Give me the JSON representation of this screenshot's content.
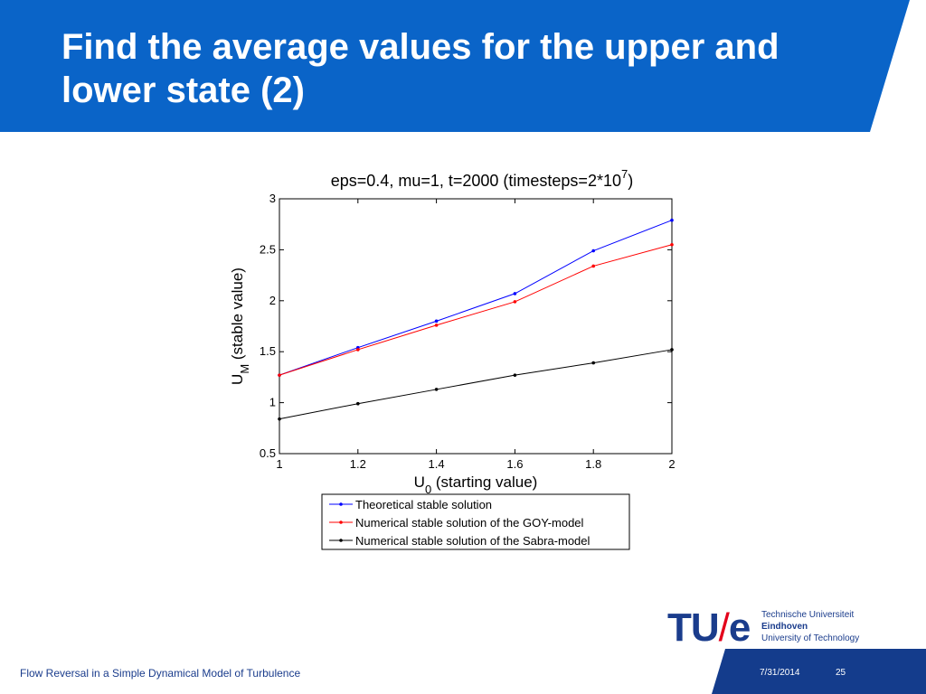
{
  "slide": {
    "title": "Find the average values for the upper and lower state (2)"
  },
  "footer": {
    "text": "Flow Reversal in a Simple Dynamical Model of Turbulence",
    "date": "7/31/2014",
    "page": "25"
  },
  "logo": {
    "mark_left": "TU",
    "mark_slash": "/",
    "mark_right": "e",
    "line1": "Technische Universiteit",
    "line2": "Eindhoven",
    "line3": "University of Technology"
  },
  "colors": {
    "header": "#0a64c8",
    "footer": "#143c8c",
    "theoretical": "#0000ff",
    "goy": "#ff0000",
    "sabra": "#000000"
  },
  "chart_data": {
    "type": "line",
    "title_main": "eps=0.4, mu=1, t=2000 (timesteps=2*10",
    "title_sup": "7",
    "title_end": ")",
    "xlabel_main": "U",
    "xlabel_sub": "0",
    "xlabel_rest": " (starting value)",
    "ylabel_main": "U",
    "ylabel_sub": "M",
    "ylabel_rest": " (stable value)",
    "xlim": [
      1,
      2
    ],
    "ylim": [
      0.5,
      3
    ],
    "xticks": [
      "1",
      "1.2",
      "1.4",
      "1.6",
      "1.8",
      "2"
    ],
    "yticks": [
      "0.5",
      "1",
      "1.5",
      "2",
      "2.5",
      "3"
    ],
    "grid": false,
    "legend_position": "below",
    "x": [
      1,
      1.2,
      1.4,
      1.6,
      1.8,
      2
    ],
    "series": [
      {
        "name": "Theoretical stable solution",
        "color": "#0000ff",
        "values": [
          1.27,
          1.54,
          1.8,
          2.07,
          2.49,
          2.79
        ]
      },
      {
        "name": "Numerical stable solution of the GOY-model",
        "color": "#ff0000",
        "values": [
          1.27,
          1.52,
          1.76,
          1.99,
          2.34,
          2.55
        ]
      },
      {
        "name": "Numerical stable solution of the Sabra-model",
        "color": "#000000",
        "values": [
          0.84,
          0.99,
          1.13,
          1.27,
          1.39,
          1.52
        ]
      }
    ]
  }
}
